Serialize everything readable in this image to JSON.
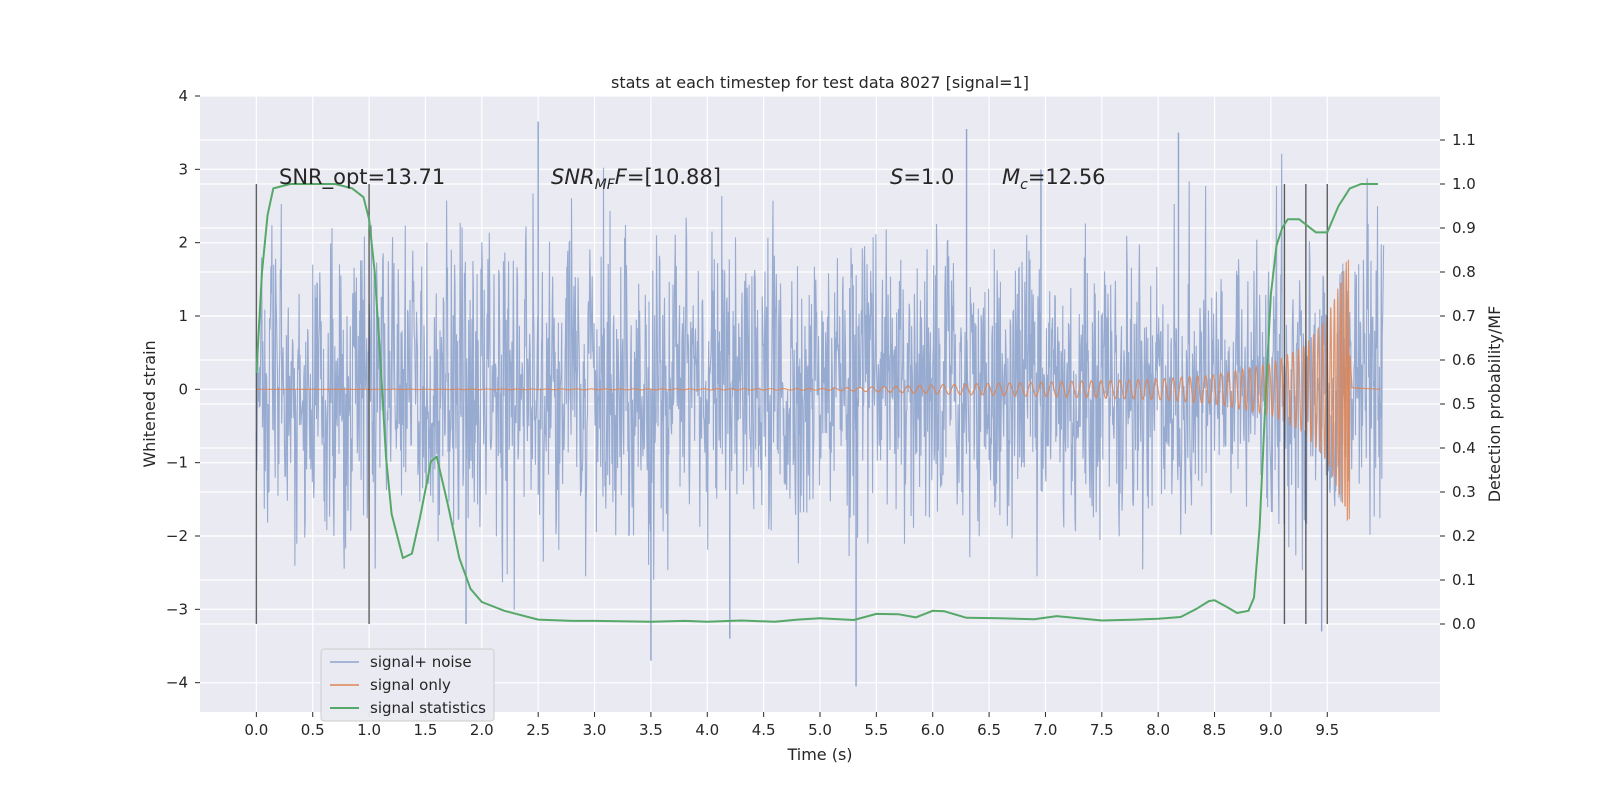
{
  "chart_data": {
    "type": "line",
    "title": "stats at each timestep for test data 8027 [signal=1]",
    "xlabel": "Time (s)",
    "ylabel": "Whitened strain",
    "ylabel_right": "Detection probability/MF",
    "xlim": [
      -0.5,
      10.5
    ],
    "ylim": [
      -4.4,
      4.0
    ],
    "ylim_right": [
      -0.2,
      1.2
    ],
    "x_ticks": [
      0.0,
      0.5,
      1.0,
      1.5,
      2.0,
      2.5,
      3.0,
      3.5,
      4.0,
      4.5,
      5.0,
      5.5,
      6.0,
      6.5,
      7.0,
      7.5,
      8.0,
      8.5,
      9.0,
      9.5
    ],
    "x_tick_labels": [
      "0.0",
      "0.5",
      "1.0",
      "1.5",
      "2.0",
      "2.5",
      "3.0",
      "3.5",
      "4.0",
      "4.5",
      "5.0",
      "5.5",
      "6.0",
      "6.5",
      "7.0",
      "7.5",
      "8.0",
      "8.5",
      "9.0",
      "9.5"
    ],
    "y_ticks": [
      -4,
      -3,
      -2,
      -1,
      0,
      1,
      2,
      3,
      4
    ],
    "y_tick_labels": [
      "−4",
      "−3",
      "−2",
      "−1",
      "0",
      "1",
      "2",
      "3",
      "4"
    ],
    "y_right_ticks": [
      0.0,
      0.1,
      0.2,
      0.3,
      0.4,
      0.5,
      0.6,
      0.7,
      0.8,
      0.9,
      1.0,
      1.1
    ],
    "y_right_tick_labels": [
      "0.0",
      "0.1",
      "0.2",
      "0.3",
      "0.4",
      "0.5",
      "0.6",
      "0.7",
      "0.8",
      "0.9",
      "1.0",
      "1.1"
    ],
    "grid": true,
    "legend_position": "lower-left",
    "colors": {
      "background": "#eaeaf2",
      "noise": "#8ea3cc",
      "signal": "#dd8452",
      "stats": "#55a868",
      "vline": "#444444"
    },
    "annotations": {
      "snr_opt": "SNR_opt=13.71",
      "snr_mf_prefix": "SNR",
      "snr_mf_sub": "MF",
      "snr_mf_value": "=[10.88]",
      "s_prefix": "S",
      "s_value": "=1.0",
      "mc_prefix": "M",
      "mc_sub": "c",
      "mc_value": "=12.56"
    },
    "vertical_lines_x": [
      0.0,
      1.0,
      9.12,
      9.31,
      9.5
    ],
    "vertical_lines_range_right": [
      0.0,
      1.0
    ],
    "series": [
      {
        "name": "signal+ noise",
        "x_range": [
          0.0,
          10.0
        ],
        "typical_amplitude": 1.6,
        "peak_min": -4.05,
        "peak_max": 3.65
      },
      {
        "name": "signal only",
        "x_range": [
          0.0,
          9.7
        ],
        "envelope_x": [
          0.0,
          5.0,
          6.0,
          7.0,
          8.0,
          8.5,
          9.0,
          9.3,
          9.5,
          9.6,
          9.68
        ],
        "envelope": [
          0.0,
          0.01,
          0.06,
          0.1,
          0.14,
          0.2,
          0.35,
          0.6,
          1.0,
          1.4,
          1.8
        ]
      },
      {
        "name": "signal statistics",
        "x": [
          0.0,
          0.05,
          0.1,
          0.15,
          0.3,
          0.5,
          0.7,
          0.85,
          0.95,
          1.0,
          1.05,
          1.1,
          1.15,
          1.2,
          1.3,
          1.38,
          1.45,
          1.55,
          1.6,
          1.7,
          1.8,
          1.9,
          2.0,
          2.2,
          2.5,
          2.8,
          3.0,
          3.5,
          3.8,
          4.0,
          4.3,
          4.6,
          4.8,
          5.0,
          5.3,
          5.5,
          5.7,
          5.85,
          6.0,
          6.1,
          6.3,
          6.6,
          6.9,
          7.1,
          7.5,
          7.8,
          8.0,
          8.2,
          8.35,
          8.45,
          8.5,
          8.6,
          8.7,
          8.8,
          8.85,
          8.9,
          8.95,
          9.0,
          9.05,
          9.1,
          9.15,
          9.25,
          9.3,
          9.4,
          9.5,
          9.6,
          9.65,
          9.7,
          9.8,
          9.95
        ],
        "values": [
          0.57,
          0.8,
          0.93,
          0.99,
          1.0,
          1.0,
          1.0,
          0.99,
          0.97,
          0.92,
          0.8,
          0.6,
          0.38,
          0.25,
          0.15,
          0.16,
          0.24,
          0.37,
          0.38,
          0.27,
          0.15,
          0.08,
          0.05,
          0.03,
          0.01,
          0.007,
          0.007,
          0.005,
          0.007,
          0.005,
          0.008,
          0.005,
          0.01,
          0.013,
          0.009,
          0.023,
          0.022,
          0.015,
          0.03,
          0.029,
          0.014,
          0.013,
          0.011,
          0.018,
          0.008,
          0.01,
          0.012,
          0.016,
          0.036,
          0.052,
          0.054,
          0.04,
          0.025,
          0.03,
          0.06,
          0.22,
          0.5,
          0.75,
          0.86,
          0.9,
          0.92,
          0.92,
          0.91,
          0.89,
          0.89,
          0.95,
          0.97,
          0.99,
          1.0,
          1.0
        ]
      }
    ]
  }
}
